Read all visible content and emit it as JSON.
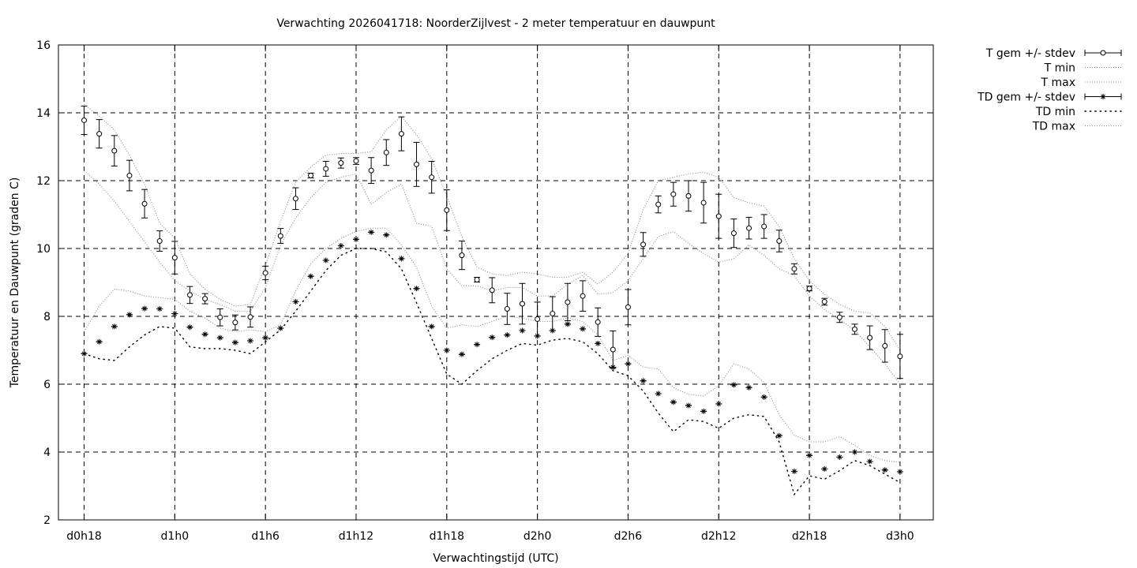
{
  "chart_data": {
    "type": "errorbar-line",
    "title": "Verwachting 2026041718: NoorderZijlvest - 2 meter temperatuur en dauwpunt",
    "xlabel": "Verwachtingstijd (UTC)",
    "ylabel": "Temperatuur en Dauwpunt (graden C)",
    "ylim": [
      2,
      16
    ],
    "yticks": [
      2,
      4,
      6,
      8,
      10,
      12,
      14,
      16
    ],
    "xlim_hours": [
      -1.7,
      56.2
    ],
    "xticks": [
      {
        "h": 0,
        "label": "d0h18"
      },
      {
        "h": 6,
        "label": "d1h0"
      },
      {
        "h": 12,
        "label": "d1h6"
      },
      {
        "h": 18,
        "label": "d1h12"
      },
      {
        "h": 24,
        "label": "d1h18"
      },
      {
        "h": 30,
        "label": "d2h0"
      },
      {
        "h": 36,
        "label": "d2h6"
      },
      {
        "h": 42,
        "label": "d2h12"
      },
      {
        "h": 48,
        "label": "d2h18"
      },
      {
        "h": 54,
        "label": "d3h0"
      }
    ],
    "grid": true,
    "legend_position": "outside-top-right",
    "legend": [
      {
        "label": "T gem +/- stdev",
        "style": "errorbar-circle"
      },
      {
        "label": "T min",
        "style": "dotted-fine"
      },
      {
        "label": "T max",
        "style": "dotted-fine"
      },
      {
        "label": "TD gem +/- stdev",
        "style": "errorbar-star"
      },
      {
        "label": "TD min",
        "style": "dotted-coarse"
      },
      {
        "label": "TD max",
        "style": "dotted-fine"
      }
    ],
    "x_hours": [
      0,
      1,
      2,
      3,
      4,
      5,
      6,
      7,
      8,
      9,
      10,
      11,
      12,
      13,
      14,
      15,
      16,
      17,
      18,
      19,
      20,
      21,
      22,
      23,
      24,
      25,
      26,
      27,
      28,
      29,
      30,
      31,
      32,
      33,
      34,
      35,
      36,
      37,
      38,
      39,
      40,
      41,
      42,
      43,
      44,
      45,
      46,
      47,
      48,
      49,
      50,
      51,
      52,
      53,
      54
    ],
    "series": [
      {
        "name": "T gem +/- stdev",
        "mean": [
          13.78,
          13.38,
          12.88,
          12.15,
          11.32,
          10.22,
          9.73,
          8.63,
          8.52,
          7.97,
          7.82,
          7.98,
          9.28,
          10.37,
          11.47,
          12.15,
          12.35,
          12.52,
          12.58,
          12.3,
          12.83,
          13.38,
          12.48,
          12.1,
          11.13,
          9.8,
          9.08,
          8.77,
          8.22,
          8.37,
          7.92,
          8.08,
          8.42,
          8.6,
          7.83,
          7.02,
          8.27,
          10.12,
          11.3,
          11.6,
          11.55,
          11.35,
          10.95,
          10.45,
          10.6,
          10.65,
          10.22,
          9.4,
          8.82,
          8.43,
          7.97,
          7.62,
          7.37,
          7.13,
          6.82
        ],
        "stdev": [
          0.42,
          0.42,
          0.45,
          0.45,
          0.42,
          0.3,
          0.48,
          0.25,
          0.15,
          0.25,
          0.22,
          0.3,
          0.2,
          0.22,
          0.32,
          0.07,
          0.22,
          0.15,
          0.1,
          0.38,
          0.38,
          0.5,
          0.65,
          0.47,
          0.6,
          0.42,
          0.07,
          0.37,
          0.46,
          0.6,
          0.5,
          0.5,
          0.55,
          0.45,
          0.42,
          0.55,
          0.52,
          0.35,
          0.25,
          0.35,
          0.45,
          0.6,
          0.65,
          0.42,
          0.32,
          0.35,
          0.32,
          0.15,
          0.07,
          0.1,
          0.15,
          0.15,
          0.35,
          0.48,
          0.65
        ]
      },
      {
        "name": "T min",
        "values": [
          12.3,
          11.9,
          11.4,
          10.8,
          10.2,
          9.6,
          9.05,
          8.75,
          8.5,
          8.35,
          8.15,
          8.15,
          8.85,
          10.1,
          10.9,
          11.5,
          11.95,
          12.1,
          12.2,
          11.3,
          11.65,
          11.9,
          10.75,
          10.65,
          9.4,
          8.9,
          8.9,
          8.75,
          8.85,
          8.85,
          8.6,
          8.6,
          8.95,
          9.2,
          8.65,
          8.7,
          9.05,
          9.7,
          10.35,
          10.5,
          10.15,
          9.85,
          9.6,
          9.7,
          10.1,
          9.8,
          9.4,
          9.2,
          8.6,
          8.2,
          7.9,
          7.6,
          7.1,
          6.6,
          6.0
        ]
      },
      {
        "name": "T max",
        "values": [
          14.25,
          13.9,
          13.5,
          12.75,
          11.9,
          10.75,
          10.3,
          9.25,
          8.8,
          8.5,
          8.3,
          8.35,
          9.5,
          10.8,
          11.95,
          12.4,
          12.75,
          12.8,
          12.8,
          12.85,
          13.5,
          13.9,
          13.35,
          12.65,
          11.55,
          10.35,
          9.45,
          9.25,
          9.2,
          9.3,
          9.25,
          9.15,
          9.15,
          9.3,
          8.95,
          9.3,
          9.85,
          11.15,
          12.0,
          12.1,
          12.2,
          12.25,
          12.1,
          11.5,
          11.35,
          11.25,
          10.65,
          9.7,
          9.05,
          8.65,
          8.35,
          8.15,
          8.1,
          7.7,
          7.0
        ]
      },
      {
        "name": "TD gem +/- stdev",
        "mean": [
          6.9,
          7.25,
          7.7,
          8.05,
          8.23,
          8.22,
          8.08,
          7.68,
          7.47,
          7.37,
          7.23,
          7.28,
          7.37,
          7.65,
          8.43,
          9.18,
          9.65,
          10.08,
          10.27,
          10.48,
          10.4,
          9.7,
          8.82,
          7.7,
          7.0,
          6.88,
          7.17,
          7.38,
          7.45,
          7.58,
          7.42,
          7.58,
          7.77,
          7.63,
          7.2,
          6.5,
          6.6,
          6.1,
          5.72,
          5.47,
          5.37,
          5.2,
          5.42,
          5.98,
          5.9,
          5.62,
          4.48,
          3.43,
          3.9,
          3.5,
          3.85,
          4.0,
          3.72,
          3.47,
          3.42
        ]
      },
      {
        "name": "TD min",
        "values": [
          6.9,
          6.75,
          6.7,
          7.1,
          7.45,
          7.7,
          7.65,
          7.1,
          7.05,
          7.05,
          7.0,
          6.9,
          7.25,
          7.6,
          8.15,
          8.75,
          9.35,
          9.8,
          10.0,
          10.0,
          9.9,
          9.4,
          8.4,
          7.35,
          6.3,
          6.0,
          6.4,
          6.75,
          7.0,
          7.2,
          7.15,
          7.3,
          7.35,
          7.25,
          6.9,
          6.4,
          6.25,
          5.8,
          5.15,
          4.6,
          4.95,
          4.9,
          4.7,
          5.0,
          5.1,
          5.05,
          4.3,
          2.75,
          3.3,
          3.2,
          3.45,
          3.75,
          3.6,
          3.35,
          3.1
        ]
      },
      {
        "name": "TD max",
        "values": [
          7.55,
          8.3,
          8.8,
          8.75,
          8.6,
          8.55,
          8.5,
          8.15,
          7.95,
          7.65,
          7.55,
          7.6,
          7.55,
          7.75,
          8.75,
          9.55,
          10.0,
          10.3,
          10.5,
          10.6,
          10.6,
          10.1,
          9.45,
          8.3,
          7.65,
          7.75,
          7.7,
          7.85,
          8.0,
          7.95,
          7.85,
          7.85,
          7.95,
          7.85,
          7.45,
          6.7,
          6.85,
          6.5,
          6.45,
          5.9,
          5.7,
          5.65,
          5.95,
          6.6,
          6.45,
          6.05,
          5.1,
          4.5,
          4.3,
          4.3,
          4.45,
          4.2,
          3.9,
          3.75,
          3.7
        ]
      }
    ]
  }
}
